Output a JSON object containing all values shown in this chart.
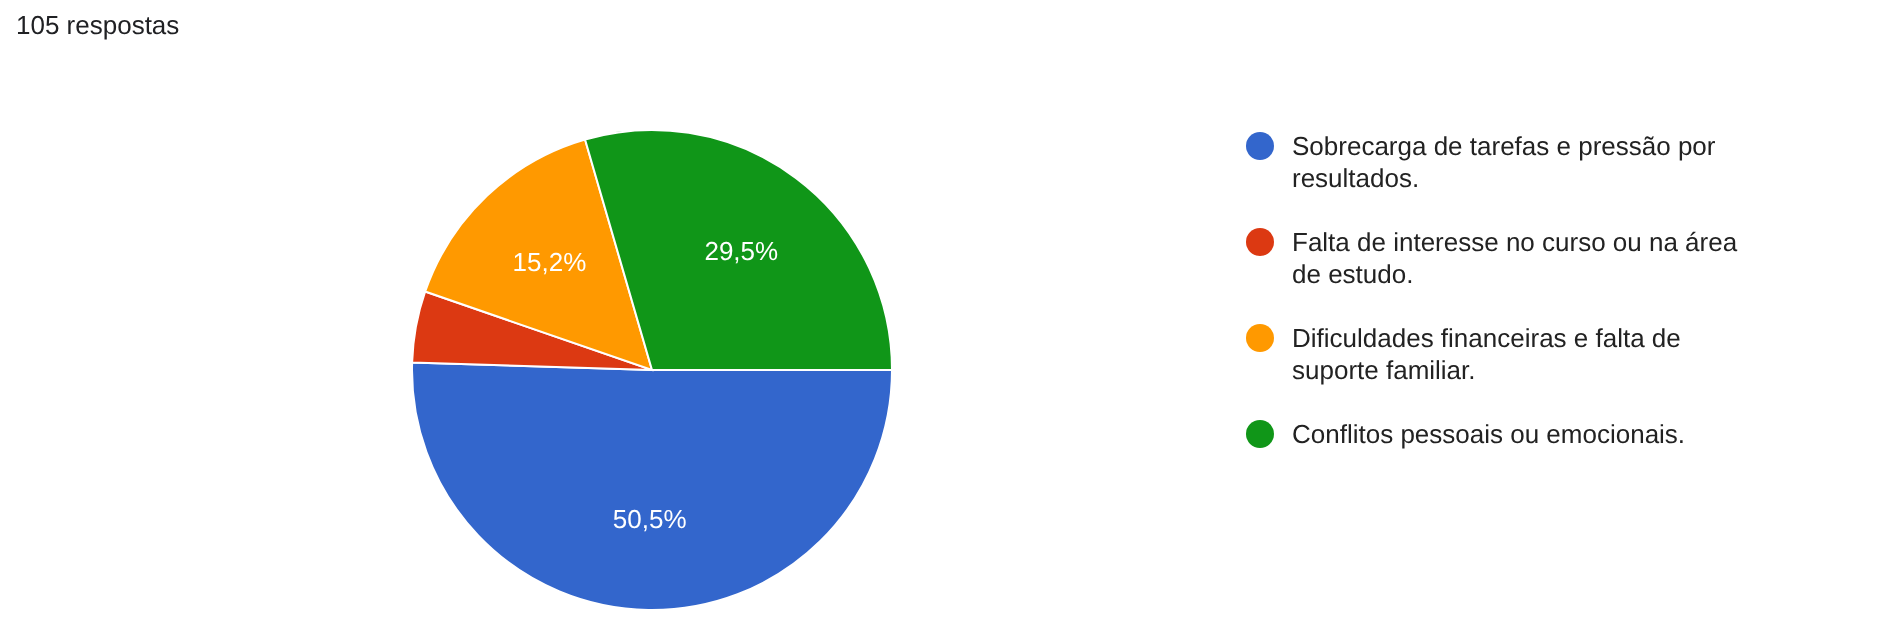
{
  "chart_data": {
    "type": "pie",
    "title": "105 respostas",
    "categories": [
      "Sobrecarga de tarefas e pressão por resultados.",
      "Falta de interesse no curso ou na área de estudo.",
      "Dificuldades financeiras e falta de suporte familiar.",
      "Conflitos pessoais ou emocionais."
    ],
    "values": [
      50.5,
      4.8,
      15.2,
      29.5
    ],
    "colors": [
      "#3366cc",
      "#dc3912",
      "#ff9900",
      "#109618"
    ],
    "value_labels": [
      "50,5%",
      null,
      "15,2%",
      "29,5%"
    ],
    "legend": "right"
  }
}
